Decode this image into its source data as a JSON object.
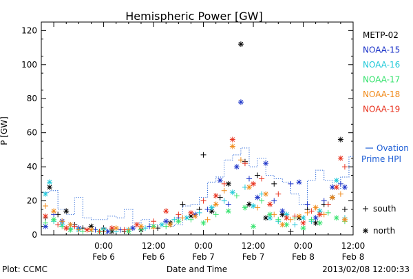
{
  "chart_data": {
    "type": "scatter",
    "title": "Hemispheric Power [GW]",
    "xlabel": "Date and Time",
    "ylabel": "P [GW]",
    "ylim": [
      0,
      125
    ],
    "xlim_hours": [
      -15,
      60
    ],
    "y_ticks": [
      0,
      20,
      40,
      60,
      80,
      100,
      120
    ],
    "x_ticks": [
      {
        "t": 0,
        "time": "0:00",
        "date": "Feb 6"
      },
      {
        "t": 12,
        "time": "12:00",
        "date": "Feb 6"
      },
      {
        "t": 24,
        "time": "0:00",
        "date": "Feb 7"
      },
      {
        "t": 36,
        "time": "12:00",
        "date": "Feb 7"
      },
      {
        "t": 48,
        "time": "0:00",
        "date": "Feb 8"
      },
      {
        "t": 60,
        "time": "12:00",
        "date": "Feb 8"
      }
    ],
    "grid": false,
    "legend_position": "right",
    "markers": {
      "south": "+",
      "north": "*"
    },
    "marker_legend": [
      {
        "symbol": "+",
        "label": "south"
      },
      {
        "symbol": "*",
        "label": "north"
      }
    ],
    "ovation_label": [
      "Ovation",
      "Prime HPI"
    ],
    "ovation_color": "#1f5fd6",
    "ovation": [
      [
        -15,
        25
      ],
      [
        -13,
        26
      ],
      [
        -11,
        15
      ],
      [
        -9,
        12
      ],
      [
        -7,
        22
      ],
      [
        -5,
        10
      ],
      [
        -3,
        9
      ],
      [
        -1,
        9
      ],
      [
        1,
        11
      ],
      [
        3,
        10
      ],
      [
        5,
        15
      ],
      [
        7,
        7
      ],
      [
        9,
        9
      ],
      [
        11,
        6
      ],
      [
        13,
        6
      ],
      [
        15,
        5
      ],
      [
        17,
        6
      ],
      [
        19,
        17
      ],
      [
        21,
        18
      ],
      [
        23,
        22
      ],
      [
        25,
        31
      ],
      [
        27,
        34
      ],
      [
        29,
        44
      ],
      [
        31,
        47
      ],
      [
        33,
        51
      ],
      [
        35,
        40
      ],
      [
        37,
        45
      ],
      [
        39,
        35
      ],
      [
        41,
        33
      ],
      [
        43,
        31
      ],
      [
        45,
        24
      ],
      [
        47,
        18
      ],
      [
        49,
        32
      ],
      [
        51,
        38
      ],
      [
        53,
        32
      ],
      [
        55,
        27
      ],
      [
        57,
        34
      ],
      [
        59,
        46
      ],
      [
        60,
        46
      ]
    ],
    "series": [
      {
        "name": "METP-02",
        "color": "#000000",
        "points": [
          [
            -14,
            10,
            "s"
          ],
          [
            -13,
            28,
            "n"
          ],
          [
            -11,
            12,
            "s"
          ],
          [
            -9,
            14,
            "n"
          ],
          [
            -7,
            6,
            "s"
          ],
          [
            -5,
            4,
            "s"
          ],
          [
            -3,
            5,
            "n"
          ],
          [
            0,
            4,
            "s"
          ],
          [
            2,
            2,
            "n"
          ],
          [
            5,
            2,
            "s"
          ],
          [
            9,
            3,
            "n"
          ],
          [
            13,
            4,
            "s"
          ],
          [
            16,
            7,
            "n"
          ],
          [
            19,
            18,
            "s"
          ],
          [
            21,
            11,
            "n"
          ],
          [
            23,
            15,
            "s"
          ],
          [
            24,
            47,
            "s"
          ],
          [
            26,
            14,
            "n"
          ],
          [
            28,
            22,
            "s"
          ],
          [
            30,
            30,
            "n"
          ],
          [
            33,
            112,
            "n"
          ],
          [
            34,
            43,
            "s"
          ],
          [
            35,
            18,
            "n"
          ],
          [
            37,
            35,
            "s"
          ],
          [
            39,
            10,
            "n"
          ],
          [
            41,
            30,
            "s"
          ],
          [
            43,
            12,
            "n"
          ],
          [
            45,
            2,
            "s"
          ],
          [
            47,
            10,
            "n"
          ],
          [
            49,
            15,
            "s"
          ],
          [
            51,
            7,
            "n"
          ],
          [
            53,
            18,
            "s"
          ],
          [
            55,
            22,
            "n"
          ],
          [
            57,
            56,
            "n"
          ],
          [
            58,
            15,
            "s"
          ]
        ]
      },
      {
        "name": "NOAA-15",
        "color": "#1b33c8",
        "points": [
          [
            -14,
            5,
            "n"
          ],
          [
            -12,
            12,
            "s"
          ],
          [
            -10,
            8,
            "n"
          ],
          [
            -8,
            6,
            "s"
          ],
          [
            -6,
            4,
            "n"
          ],
          [
            -2,
            3,
            "s"
          ],
          [
            1,
            2,
            "n"
          ],
          [
            4,
            3,
            "s"
          ],
          [
            7,
            4,
            "n"
          ],
          [
            11,
            5,
            "s"
          ],
          [
            15,
            8,
            "n"
          ],
          [
            18,
            10,
            "s"
          ],
          [
            22,
            12,
            "n"
          ],
          [
            25,
            15,
            "s"
          ],
          [
            28,
            32,
            "n"
          ],
          [
            30,
            18,
            "s"
          ],
          [
            32,
            40,
            "n"
          ],
          [
            33,
            78,
            "n"
          ],
          [
            35,
            33,
            "s"
          ],
          [
            37,
            22,
            "n"
          ],
          [
            39,
            42,
            "n"
          ],
          [
            41,
            20,
            "s"
          ],
          [
            43,
            14,
            "n"
          ],
          [
            45,
            30,
            "s"
          ],
          [
            47,
            31,
            "n"
          ],
          [
            49,
            18,
            "s"
          ],
          [
            51,
            10,
            "n"
          ],
          [
            53,
            20,
            "s"
          ],
          [
            55,
            28,
            "n"
          ],
          [
            57,
            30,
            "s"
          ],
          [
            58,
            28,
            "n"
          ]
        ]
      },
      {
        "name": "NOAA-16",
        "color": "#1fc8d8",
        "points": [
          [
            -14,
            24,
            "n"
          ],
          [
            -13,
            31,
            "n"
          ],
          [
            -12,
            8,
            "s"
          ],
          [
            -10,
            6,
            "n"
          ],
          [
            -8,
            4,
            "s"
          ],
          [
            -6,
            3,
            "n"
          ],
          [
            -3,
            2,
            "s"
          ],
          [
            0,
            3,
            "n"
          ],
          [
            3,
            2,
            "s"
          ],
          [
            6,
            3,
            "n"
          ],
          [
            10,
            4,
            "s"
          ],
          [
            14,
            6,
            "n"
          ],
          [
            17,
            9,
            "s"
          ],
          [
            20,
            10,
            "n"
          ],
          [
            23,
            13,
            "s"
          ],
          [
            26,
            16,
            "n"
          ],
          [
            29,
            20,
            "s"
          ],
          [
            31,
            25,
            "n"
          ],
          [
            34,
            28,
            "s"
          ],
          [
            36,
            17,
            "n"
          ],
          [
            38,
            24,
            "s"
          ],
          [
            40,
            10,
            "n"
          ],
          [
            42,
            8,
            "s"
          ],
          [
            44,
            12,
            "n"
          ],
          [
            46,
            6,
            "s"
          ],
          [
            48,
            10,
            "n"
          ],
          [
            50,
            8,
            "s"
          ],
          [
            52,
            14,
            "n"
          ],
          [
            54,
            18,
            "s"
          ],
          [
            56,
            32,
            "n"
          ],
          [
            58,
            10,
            "s"
          ]
        ]
      },
      {
        "name": "NOAA-17",
        "color": "#36e36e",
        "points": [
          [
            -14,
            7,
            "s"
          ],
          [
            -12,
            9,
            "n"
          ],
          [
            -10,
            5,
            "s"
          ],
          [
            -8,
            3,
            "n"
          ],
          [
            -5,
            2,
            "s"
          ],
          [
            -1,
            2,
            "n"
          ],
          [
            2,
            3,
            "s"
          ],
          [
            6,
            2,
            "n"
          ],
          [
            9,
            3,
            "s"
          ],
          [
            12,
            5,
            "n"
          ],
          [
            15,
            5,
            "s"
          ],
          [
            18,
            8,
            "n"
          ],
          [
            21,
            9,
            "s"
          ],
          [
            24,
            7,
            "n"
          ],
          [
            27,
            12,
            "s"
          ],
          [
            30,
            14,
            "n"
          ],
          [
            32,
            23,
            "s"
          ],
          [
            34,
            16,
            "n"
          ],
          [
            36,
            5,
            "n"
          ],
          [
            38,
            20,
            "s"
          ],
          [
            40,
            12,
            "n"
          ],
          [
            42,
            9,
            "s"
          ],
          [
            44,
            6,
            "n"
          ],
          [
            46,
            10,
            "s"
          ],
          [
            48,
            4,
            "n"
          ],
          [
            50,
            9,
            "s"
          ],
          [
            52,
            7,
            "n"
          ],
          [
            54,
            13,
            "s"
          ],
          [
            56,
            10,
            "n"
          ],
          [
            58,
            8,
            "s"
          ]
        ]
      },
      {
        "name": "NOAA-18",
        "color": "#f08a1a",
        "points": [
          [
            -14,
            17,
            "s"
          ],
          [
            -12,
            14,
            "n"
          ],
          [
            -10,
            8,
            "s"
          ],
          [
            -8,
            6,
            "n"
          ],
          [
            -6,
            3,
            "s"
          ],
          [
            -3,
            3,
            "n"
          ],
          [
            0,
            2,
            "s"
          ],
          [
            3,
            4,
            "n"
          ],
          [
            6,
            3,
            "s"
          ],
          [
            9,
            5,
            "n"
          ],
          [
            12,
            4,
            "s"
          ],
          [
            16,
            6,
            "n"
          ],
          [
            19,
            10,
            "s"
          ],
          [
            22,
            11,
            "n"
          ],
          [
            25,
            9,
            "s"
          ],
          [
            27,
            18,
            "n"
          ],
          [
            29,
            26,
            "s"
          ],
          [
            31,
            52,
            "n"
          ],
          [
            33,
            44,
            "s"
          ],
          [
            35,
            28,
            "n"
          ],
          [
            37,
            16,
            "s"
          ],
          [
            39,
            24,
            "n"
          ],
          [
            41,
            12,
            "s"
          ],
          [
            43,
            6,
            "n"
          ],
          [
            45,
            9,
            "s"
          ],
          [
            47,
            11,
            "n"
          ],
          [
            49,
            13,
            "s"
          ],
          [
            51,
            16,
            "n"
          ],
          [
            53,
            12,
            "s"
          ],
          [
            55,
            22,
            "n"
          ],
          [
            57,
            24,
            "s"
          ],
          [
            58,
            9,
            "n"
          ]
        ]
      },
      {
        "name": "NOAA-19",
        "color": "#e8301c",
        "points": [
          [
            -14,
            11,
            "n"
          ],
          [
            -11,
            6,
            "s"
          ],
          [
            -9,
            4,
            "n"
          ],
          [
            -7,
            5,
            "s"
          ],
          [
            -4,
            3,
            "n"
          ],
          [
            -1,
            2,
            "s"
          ],
          [
            2,
            4,
            "n"
          ],
          [
            5,
            3,
            "s"
          ],
          [
            8,
            6,
            "n"
          ],
          [
            12,
            8,
            "s"
          ],
          [
            15,
            14,
            "n"
          ],
          [
            18,
            12,
            "s"
          ],
          [
            21,
            13,
            "n"
          ],
          [
            24,
            20,
            "s"
          ],
          [
            27,
            23,
            "n"
          ],
          [
            29,
            30,
            "s"
          ],
          [
            31,
            56,
            "n"
          ],
          [
            34,
            42,
            "s"
          ],
          [
            36,
            30,
            "n"
          ],
          [
            38,
            33,
            "s"
          ],
          [
            40,
            18,
            "n"
          ],
          [
            42,
            24,
            "s"
          ],
          [
            44,
            10,
            "n"
          ],
          [
            46,
            11,
            "s"
          ],
          [
            48,
            7,
            "n"
          ],
          [
            50,
            14,
            "s"
          ],
          [
            52,
            12,
            "n"
          ],
          [
            54,
            18,
            "s"
          ],
          [
            56,
            28,
            "n"
          ],
          [
            57,
            45,
            "n"
          ],
          [
            58,
            40,
            "s"
          ]
        ]
      }
    ]
  },
  "footer": {
    "left": "Plot: CCMC",
    "right": "2013/02/08 12:00:33"
  }
}
